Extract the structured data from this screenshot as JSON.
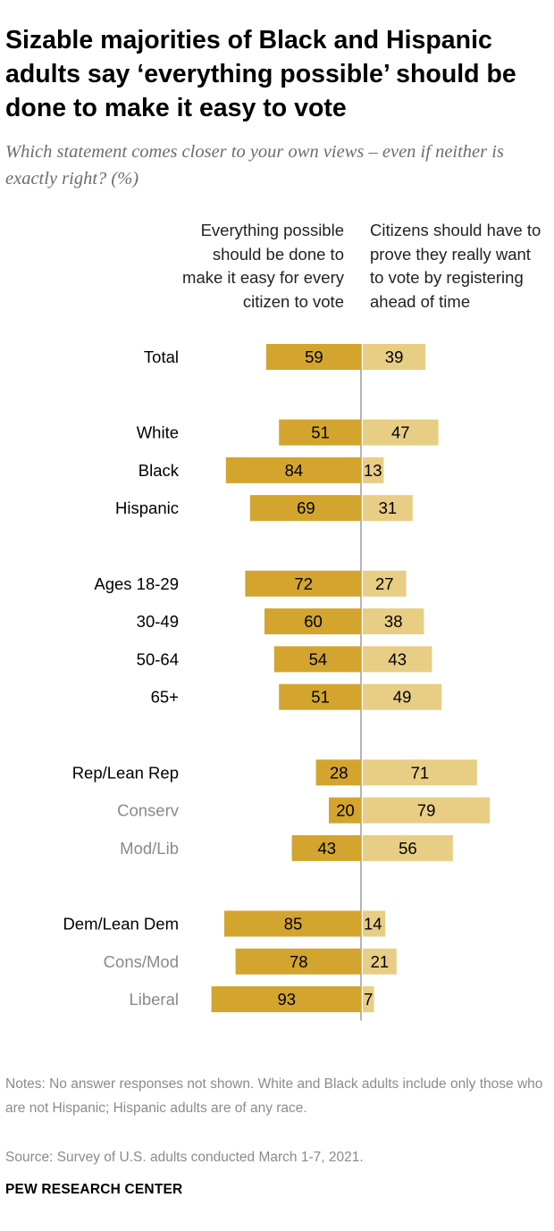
{
  "title": "Sizable majorities of Black and Hispanic adults say ‘everything possible’ should be done to make it easy to vote",
  "subtitle": "Which statement comes closer to your own views – even if neither is exactly right? (%)",
  "columns": {
    "left": "Everything possible should be done to make it easy for every citizen to vote",
    "right": "Citizens should have to prove they really want to vote by registering ahead of time"
  },
  "colors": {
    "left_bar": "#d3a52e",
    "right_bar": "#e8cd85",
    "axis": "#b5b5b5",
    "label_primary": "#000000",
    "label_secondary": "#8a8a8a"
  },
  "chart_data": {
    "type": "bar",
    "orientation": "horizontal-diverging",
    "title": "Sizable majorities of Black and Hispanic adults say ‘everything possible’ should be done to make it easy to vote",
    "categories": [
      "Total",
      "White",
      "Black",
      "Hispanic",
      "Ages 18-29",
      "30-49",
      "50-64",
      "65+",
      "Rep/Lean Rep",
      "Conserv",
      "Mod/Lib",
      "Dem/Lean Dem",
      "Cons/Mod",
      "Liberal"
    ],
    "label_styles": [
      "primary",
      "primary",
      "primary",
      "primary",
      "primary",
      "primary",
      "primary",
      "primary",
      "primary",
      "secondary",
      "secondary",
      "primary",
      "secondary",
      "secondary"
    ],
    "groups": [
      [
        0
      ],
      [
        1,
        2,
        3
      ],
      [
        4,
        5,
        6,
        7
      ],
      [
        8,
        9,
        10
      ],
      [
        11,
        12,
        13
      ]
    ],
    "series": [
      {
        "name": "Everything possible should be done to make it easy for every citizen to vote",
        "values": [
          59,
          51,
          84,
          69,
          72,
          60,
          54,
          51,
          28,
          20,
          43,
          85,
          78,
          93
        ]
      },
      {
        "name": "Citizens should have to prove they really want to vote by registering ahead of time",
        "values": [
          39,
          47,
          13,
          31,
          27,
          38,
          43,
          49,
          71,
          79,
          56,
          14,
          21,
          7
        ]
      }
    ],
    "xlim": [
      -100,
      100
    ]
  },
  "notes": "Notes: No answer responses not shown. White and Black adults include only those who are not Hispanic; Hispanic adults are of any race.",
  "source": "Source: Survey of U.S. adults conducted March 1-7, 2021.",
  "brand": "PEW RESEARCH CENTER"
}
